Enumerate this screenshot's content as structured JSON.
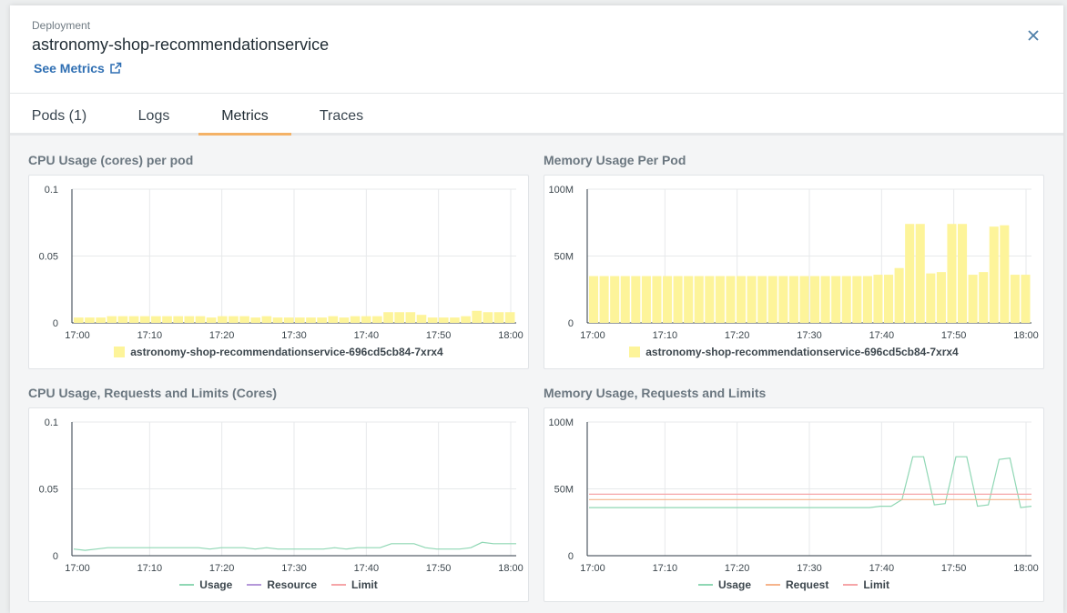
{
  "header": {
    "kind": "Deployment",
    "name": "astronomy-shop-recommendationservice",
    "see_metrics": "See Metrics"
  },
  "tabs": [
    {
      "label": "Pods (1)"
    },
    {
      "label": "Logs"
    },
    {
      "label": "Metrics"
    },
    {
      "label": "Traces"
    }
  ],
  "colors": {
    "bar_fill": "#fdf49a",
    "usage": "#8fd7b4",
    "resource": "#b598d9",
    "limit": "#f6a5a8",
    "request": "#f6b48c",
    "accent": "#f4b266"
  },
  "sections": {
    "cpu_per_pod": "CPU Usage (cores) per pod",
    "mem_per_pod": "Memory Usage Per Pod",
    "cpu_rl": "CPU Usage, Requests and Limits (Cores)",
    "mem_rl": "Memory Usage, Requests and Limits"
  },
  "legends": {
    "pod": "astronomy-shop-recommendationservice-696cd5cb84-7xrx4",
    "cpu_rl": [
      "Usage",
      "Resource",
      "Limit"
    ],
    "mem_rl": [
      "Usage",
      "Request",
      "Limit"
    ]
  },
  "chart_data": [
    {
      "type": "bar",
      "title": "CPU Usage (cores) per pod",
      "x_ticks": [
        "17:00",
        "17:10",
        "17:20",
        "17:30",
        "17:40",
        "17:50",
        "18:00"
      ],
      "y_ticks": [
        "0",
        "0.05",
        "0.1"
      ],
      "ylim": [
        0,
        0.1
      ],
      "series": [
        {
          "name": "astronomy-shop-recommendationservice-696cd5cb84-7xrx4",
          "values": [
            0.004,
            0.004,
            0.004,
            0.005,
            0.005,
            0.005,
            0.005,
            0.005,
            0.005,
            0.005,
            0.005,
            0.005,
            0.004,
            0.005,
            0.005,
            0.005,
            0.004,
            0.005,
            0.004,
            0.004,
            0.004,
            0.004,
            0.004,
            0.005,
            0.004,
            0.005,
            0.005,
            0.005,
            0.008,
            0.008,
            0.008,
            0.006,
            0.004,
            0.004,
            0.004,
            0.005,
            0.009,
            0.008,
            0.008,
            0.008
          ]
        }
      ]
    },
    {
      "type": "bar",
      "title": "Memory Usage Per Pod",
      "x_ticks": [
        "17:00",
        "17:10",
        "17:20",
        "17:30",
        "17:40",
        "17:50",
        "18:00"
      ],
      "y_ticks": [
        "0",
        "50M",
        "100M"
      ],
      "ylim": [
        0,
        100
      ],
      "series": [
        {
          "name": "astronomy-shop-recommendationservice-696cd5cb84-7xrx4",
          "values": [
            35,
            35,
            35,
            35,
            35,
            35,
            35,
            35,
            35,
            35,
            35,
            35,
            35,
            35,
            35,
            35,
            35,
            35,
            35,
            35,
            35,
            35,
            35,
            35,
            35,
            35,
            35,
            36,
            36,
            41,
            74,
            74,
            37,
            38,
            74,
            74,
            36,
            38,
            72,
            73,
            36,
            36
          ]
        }
      ]
    },
    {
      "type": "line",
      "title": "CPU Usage, Requests and Limits (Cores)",
      "x_ticks": [
        "17:00",
        "17:10",
        "17:20",
        "17:30",
        "17:40",
        "17:50",
        "18:00"
      ],
      "y_ticks": [
        "0",
        "0.05",
        "0.1"
      ],
      "ylim": [
        0,
        0.1
      ],
      "series": [
        {
          "name": "Usage",
          "values": [
            0.005,
            0.004,
            0.005,
            0.006,
            0.006,
            0.006,
            0.006,
            0.006,
            0.006,
            0.006,
            0.006,
            0.006,
            0.005,
            0.006,
            0.006,
            0.006,
            0.005,
            0.006,
            0.005,
            0.005,
            0.005,
            0.005,
            0.005,
            0.006,
            0.005,
            0.006,
            0.006,
            0.006,
            0.009,
            0.009,
            0.009,
            0.006,
            0.005,
            0.005,
            0.005,
            0.006,
            0.01,
            0.009,
            0.009,
            0.009
          ]
        },
        {
          "name": "Resource",
          "values": []
        },
        {
          "name": "Limit",
          "values": []
        }
      ]
    },
    {
      "type": "line",
      "title": "Memory Usage, Requests and Limits",
      "x_ticks": [
        "17:00",
        "17:10",
        "17:20",
        "17:30",
        "17:40",
        "17:50",
        "18:00"
      ],
      "y_ticks": [
        "0",
        "50M",
        "100M"
      ],
      "ylim": [
        0,
        100
      ],
      "series": [
        {
          "name": "Usage",
          "values": [
            36,
            36,
            36,
            36,
            36,
            36,
            36,
            36,
            36,
            36,
            36,
            36,
            36,
            36,
            36,
            36,
            36,
            36,
            36,
            36,
            36,
            36,
            36,
            36,
            36,
            36,
            36,
            37,
            37,
            42,
            74,
            74,
            38,
            39,
            74,
            74,
            37,
            38,
            72,
            73,
            36,
            37
          ]
        },
        {
          "name": "Request",
          "values": [
            42,
            42
          ]
        },
        {
          "name": "Limit",
          "values": [
            46,
            46
          ]
        }
      ]
    }
  ]
}
